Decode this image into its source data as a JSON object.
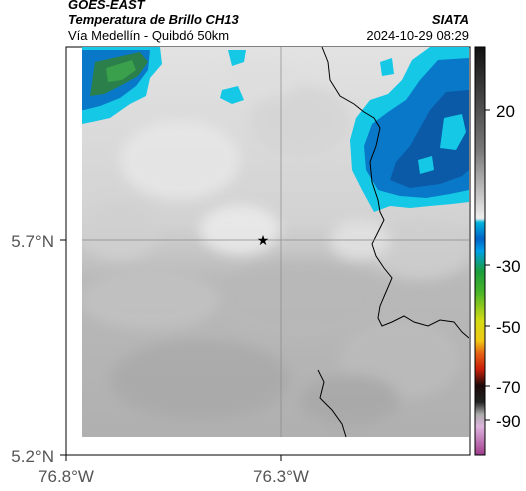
{
  "header": {
    "title": "GOES-EAST",
    "subtitle": "Temperatura de Brillo CH13",
    "location": "Vía Medellín - Quibdó 50km",
    "organization": "SIATA",
    "datetime": "2024-10-29 08:29"
  },
  "map": {
    "lat_ticks": [
      "5.7°N",
      "5.2°N"
    ],
    "lon_ticks": [
      "76.8°W",
      "76.3°W"
    ],
    "marker": {
      "symbol": "★",
      "lat": 5.7,
      "lon": 76.33
    },
    "gridlines": true
  },
  "colorbar": {
    "tick_labels": [
      "20",
      "-30",
      "-50",
      "-70",
      "-90"
    ],
    "colors": {
      "high_dark": "#1a1a1a",
      "mid_gray": "#bdbdbd",
      "cyan": "#00c8e6",
      "blue": "#0050c8",
      "green": "#1ab83c",
      "yellow": "#f0e614",
      "red": "#d21e0a",
      "black": "#000000",
      "magenta": "#b4508c"
    }
  },
  "colors": {
    "cloud_cold": "#0a78c8",
    "cloud_cyan": "#14c8e6",
    "cloud_green": "#229944",
    "land_light": "#d8d8d8",
    "land_mid": "#b4b4b4"
  }
}
